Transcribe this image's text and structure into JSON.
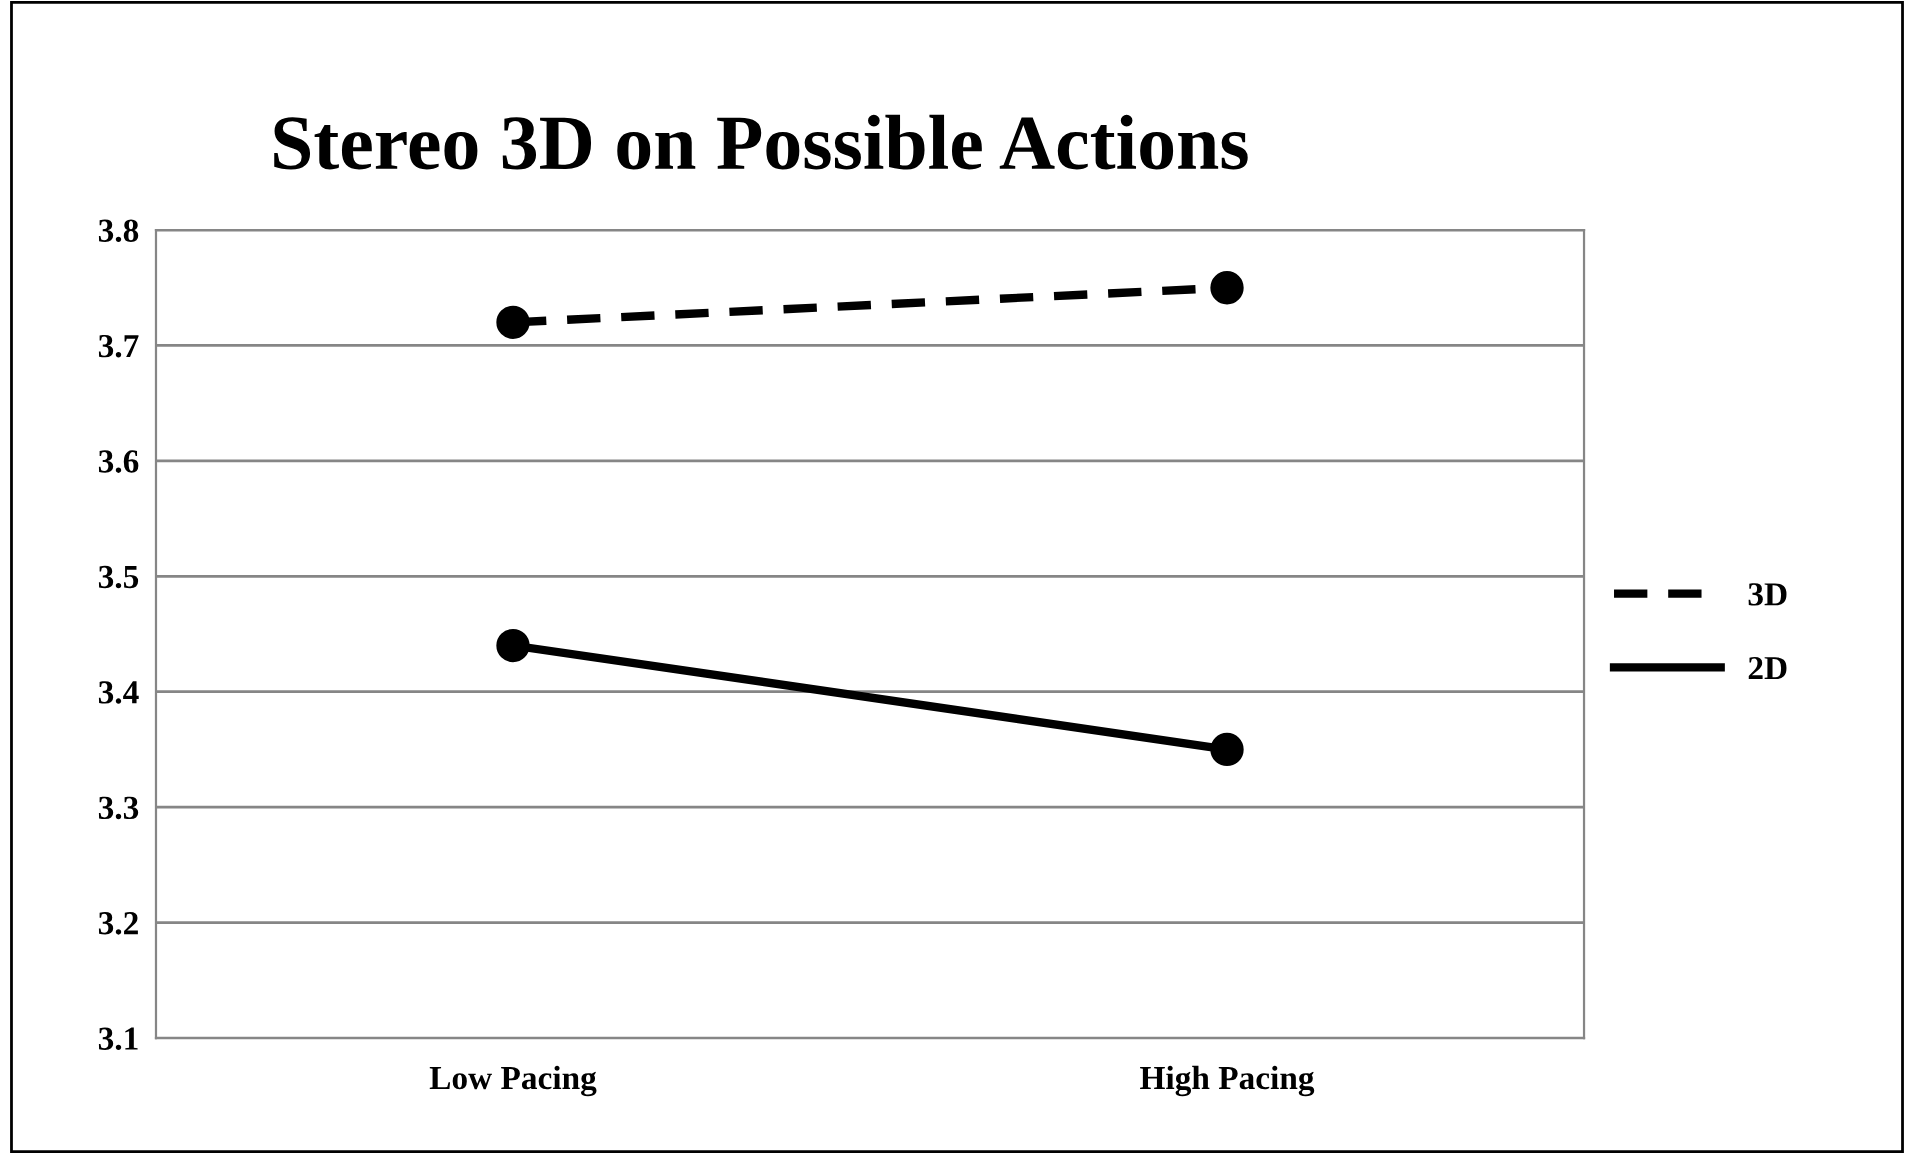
{
  "chart_data": {
    "type": "line",
    "title": "Stereo 3D on Possible Actions",
    "categories": [
      "Low Pacing",
      "High Pacing"
    ],
    "series": [
      {
        "name": "3D",
        "color": "#000000",
        "values": [
          3.72,
          3.75
        ],
        "line_style": "dashed"
      },
      {
        "name": "2D",
        "color": "#000000",
        "values": [
          3.44,
          3.35
        ],
        "line_style": "solid"
      }
    ],
    "ylim": [
      3.1,
      3.8
    ],
    "yticks": [
      3.1,
      3.2,
      3.3,
      3.4,
      3.5,
      3.6,
      3.7,
      3.8
    ],
    "grid": "y",
    "legend": "right",
    "marker": "circle"
  }
}
